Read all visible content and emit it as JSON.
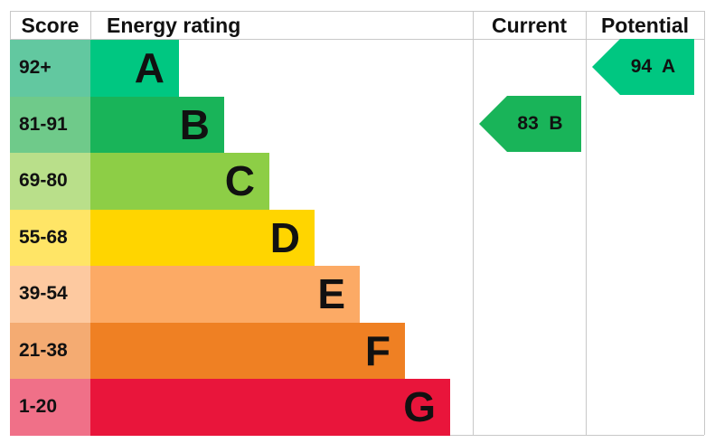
{
  "chart_data": {
    "type": "bar",
    "columns": {
      "score": "Score",
      "rating": "Energy rating",
      "current": "Current",
      "potential": "Potential"
    },
    "bands": [
      {
        "score": "92+",
        "letter": "A",
        "color": "#00c781",
        "score_color": "#62c8a0"
      },
      {
        "score": "81-91",
        "letter": "B",
        "color": "#19b459",
        "score_color": "#6fca8a"
      },
      {
        "score": "69-80",
        "letter": "C",
        "color": "#8dce46",
        "score_color": "#b9df8a"
      },
      {
        "score": "55-68",
        "letter": "D",
        "color": "#ffd500",
        "score_color": "#ffe566"
      },
      {
        "score": "39-54",
        "letter": "E",
        "color": "#fcaa65",
        "score_color": "#fdc9a0"
      },
      {
        "score": "21-38",
        "letter": "F",
        "color": "#ef8023",
        "score_color": "#f4ab72"
      },
      {
        "score": "1-20",
        "letter": "G",
        "color": "#e9153b",
        "score_color": "#f07088"
      }
    ],
    "current": {
      "value": 83,
      "letter": "B",
      "label": "83  B",
      "color": "#19b459"
    },
    "potential": {
      "value": 94,
      "letter": "A",
      "label": "94  A",
      "color": "#00c781"
    }
  }
}
